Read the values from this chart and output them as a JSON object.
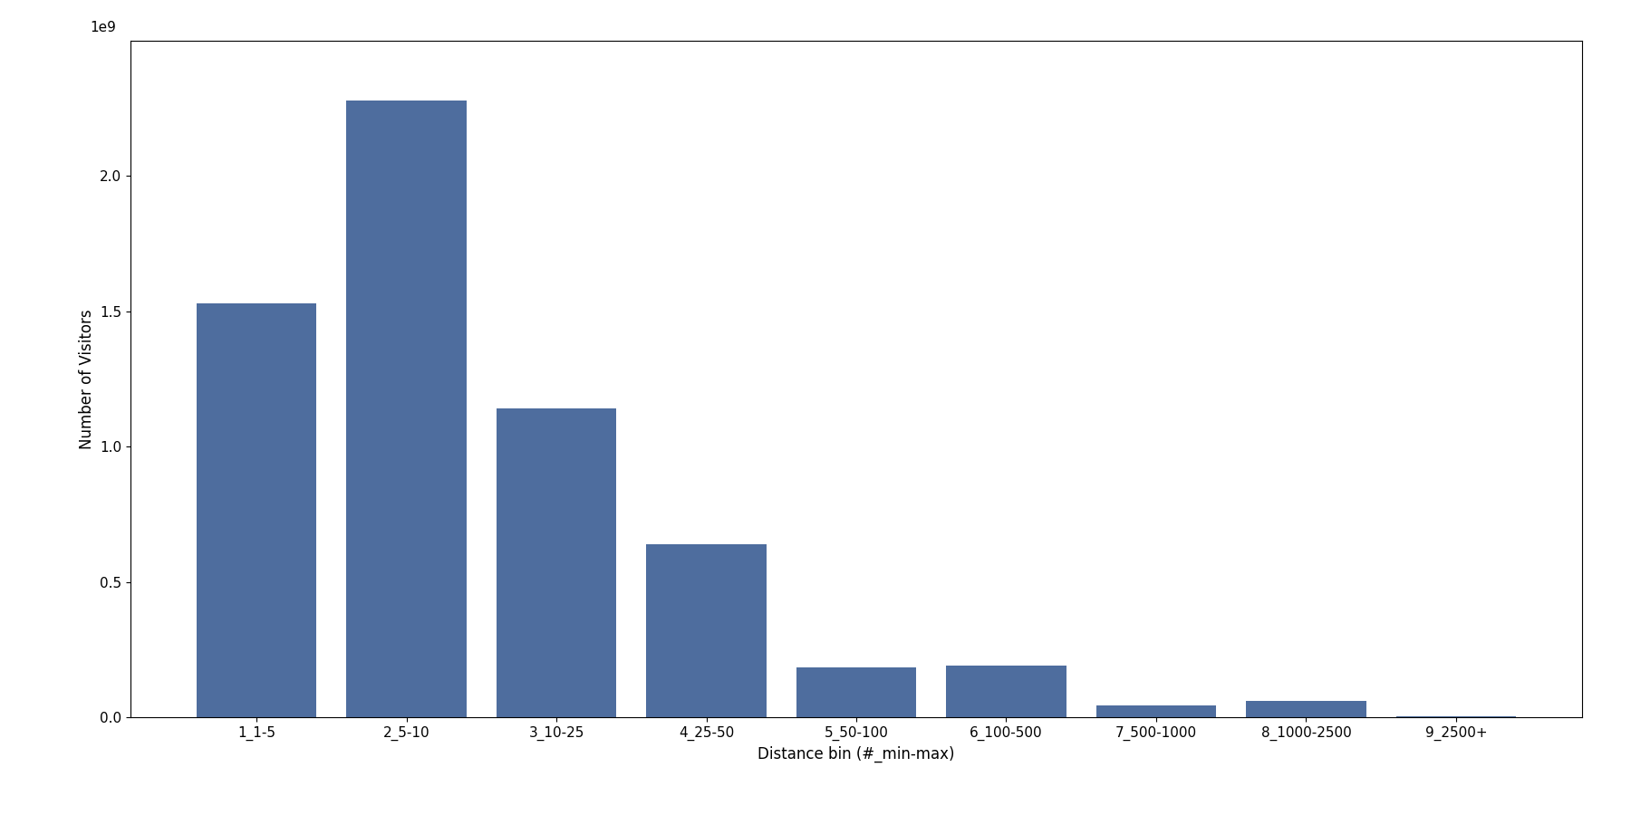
{
  "categories": [
    "1_1-5",
    "2_5-10",
    "3_10-25",
    "4_25-50",
    "5_50-100",
    "6_100-500",
    "7_500-1000",
    "8_1000-2500",
    "9_2500+"
  ],
  "values": [
    1530000000,
    2280000000,
    1140000000,
    640000000,
    185000000,
    190000000,
    45000000,
    60000000,
    5000000
  ],
  "bar_color": "#4e6d9e",
  "xlabel": "Distance bin (#_min-max)",
  "ylabel": "Number of Visitors",
  "ylim": [
    0,
    2500000000.0
  ],
  "yticks": [
    0.0,
    0.5,
    1.0,
    1.5,
    2.0
  ],
  "figsize": [
    18.0,
    9.0
  ],
  "dpi": 100,
  "xlabel_fontsize": 12,
  "ylabel_fontsize": 12,
  "tick_fontsize": 11
}
